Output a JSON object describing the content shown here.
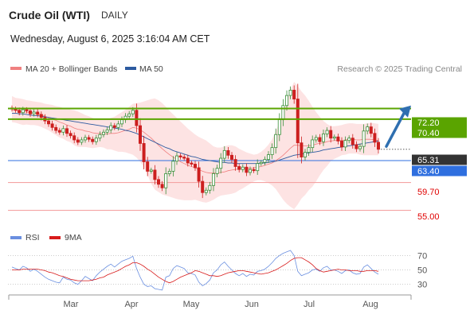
{
  "header": {
    "instrument": "Crude Oil (WTI)",
    "timeframe": "DAILY",
    "datetime": "Wednesday, August 6, 2025 3:16:04 AM CET"
  },
  "legend": {
    "ma20_label": "MA 20 + Bollinger Bands",
    "ma50_label": "MA 50",
    "rsi_label": "RSI",
    "rsi_ma_label": "9MA",
    "credit": "Research © 2025 Trading Central"
  },
  "colors": {
    "up": "#3a8f3a",
    "down": "#cc1f1f",
    "bollinger_fill": "#fde3e3",
    "ma20": "#f08080",
    "ma50": "#2c5aa0",
    "resistance": "#5aa400",
    "support": "#f4a3a3",
    "pivot": "#2f6fdf",
    "current": "#333333",
    "rsi": "#6a8fe0",
    "rsi_ma": "#d81b1b",
    "arrow": "#2f6fb0"
  },
  "chart_data": {
    "type": "candlestick",
    "x_axis": {
      "ticks": [
        "Mar",
        "Apr",
        "May",
        "Jun",
        "Jul",
        "Aug"
      ]
    },
    "y_axis": {
      "range": [
        53.6,
        77.1
      ],
      "side": "right"
    },
    "levels": [
      {
        "label": "72.20",
        "value": 72.2,
        "kind": "resistance"
      },
      {
        "label": "70.40",
        "value": 70.4,
        "kind": "resistance"
      },
      {
        "label": "65.31",
        "value": 65.31,
        "kind": "current"
      },
      {
        "label": "63.40",
        "value": 63.4,
        "kind": "pivot"
      },
      {
        "label": "59.70",
        "value": 59.7,
        "kind": "support"
      },
      {
        "label": "55.00",
        "value": 55.0,
        "kind": "support"
      }
    ],
    "forecast_arrow": {
      "from_value": 65.8,
      "to_value": 72.3
    },
    "candles_close": [
      72.1,
      71.9,
      71.5,
      72.0,
      71.8,
      71.3,
      71.6,
      71.2,
      70.7,
      70.1,
      69.6,
      69.0,
      68.5,
      68.2,
      68.8,
      68.0,
      67.6,
      66.9,
      66.5,
      66.9,
      67.3,
      67.0,
      66.6,
      67.2,
      67.8,
      68.2,
      68.6,
      69.3,
      69.0,
      69.6,
      70.3,
      70.9,
      71.3,
      71.9,
      69.3,
      66.3,
      63.2,
      61.6,
      61.8,
      60.2,
      59.4,
      58.8,
      61.2,
      61.6,
      63.3,
      64.2,
      64.0,
      63.8,
      63.0,
      62.8,
      62.2,
      59.9,
      58.0,
      58.4,
      59.2,
      61.2,
      62.1,
      63.8,
      65.1,
      64.3,
      63.6,
      62.4,
      61.9,
      62.3,
      61.4,
      61.9,
      61.7,
      62.9,
      63.1,
      63.6,
      64.4,
      65.6,
      67.8,
      70.3,
      72.7,
      74.4,
      75.3,
      73.8,
      66.4,
      64.0,
      64.8,
      65.6,
      66.9,
      67.3,
      66.6,
      67.9,
      68.5,
      67.2,
      67.4,
      66.7,
      65.7,
      66.8,
      67.2,
      66.1,
      65.4,
      65.8,
      68.4,
      69.1,
      68.0,
      66.5,
      65.31
    ],
    "ma20_values": [
      72.0,
      71.9,
      71.7,
      71.6,
      71.6,
      71.5,
      71.4,
      71.3,
      71.2,
      70.9,
      70.7,
      70.4,
      70.2,
      69.9,
      69.7,
      69.4,
      69.2,
      68.9,
      68.7,
      68.6,
      68.4,
      68.3,
      68.1,
      68.0,
      68.0,
      67.9,
      67.9,
      68.0,
      68.0,
      68.1,
      68.3,
      68.5,
      68.7,
      69.0,
      68.9,
      68.6,
      68.2,
      67.7,
      67.2,
      66.6,
      66.0,
      65.4,
      64.9,
      64.4,
      64.0,
      63.6,
      63.2,
      62.9,
      62.6,
      62.4,
      62.2,
      61.9,
      61.6,
      61.4,
      61.3,
      61.3,
      61.3,
      61.4,
      61.5,
      61.7,
      61.8,
      61.9,
      62.0,
      62.1,
      62.1,
      62.1,
      62.2,
      62.3,
      62.4,
      62.6,
      62.8,
      63.0,
      63.4,
      63.8,
      64.3,
      64.9,
      65.5,
      66.0,
      66.0,
      65.9,
      65.9,
      65.9,
      66.0,
      66.2,
      66.3,
      66.4,
      66.6,
      66.7,
      66.8,
      66.8,
      66.8,
      66.9,
      67.0,
      67.0,
      66.9,
      66.9,
      67.0,
      67.0,
      67.0,
      66.9,
      66.8
    ],
    "ma50_values": [
      71.4,
      71.4,
      71.3,
      71.3,
      71.2,
      71.1,
      71.0,
      71.0,
      70.9,
      70.8,
      70.7,
      70.6,
      70.5,
      70.4,
      70.3,
      70.2,
      70.1,
      70.0,
      69.9,
      69.8,
      69.7,
      69.6,
      69.5,
      69.4,
      69.3,
      69.2,
      69.1,
      69.0,
      68.9,
      68.8,
      68.7,
      68.5,
      68.4,
      68.2,
      68.0,
      67.7,
      67.4,
      67.1,
      66.8,
      66.5,
      66.2,
      65.9,
      65.6,
      65.4,
      65.1,
      64.9,
      64.7,
      64.5,
      64.3,
      64.1,
      64.0,
      63.8,
      63.6,
      63.5,
      63.4,
      63.3,
      63.2,
      63.1,
      63.1,
      63.0,
      63.0,
      62.9,
      62.9,
      62.9,
      62.9,
      62.9,
      62.9,
      62.9,
      63.0,
      63.0,
      63.1,
      63.2,
      63.3,
      63.5,
      63.7,
      63.9,
      64.1,
      64.3,
      64.4,
      64.5,
      64.6,
      64.7,
      64.8,
      64.9,
      65.0,
      65.2,
      65.3,
      65.4,
      65.5,
      65.6,
      65.7,
      65.8,
      65.9,
      66.0,
      66.1,
      66.2,
      66.3,
      66.4,
      66.5,
      66.6,
      66.7
    ],
    "bollinger_upper": [
      74.3,
      74.0,
      73.9,
      73.8,
      73.6,
      73.5,
      73.4,
      73.3,
      73.2,
      73.0,
      72.9,
      72.8,
      72.6,
      72.5,
      72.3,
      72.2,
      72.0,
      71.9,
      71.7,
      71.4,
      71.1,
      70.9,
      70.6,
      70.4,
      70.3,
      70.3,
      70.4,
      70.6,
      70.8,
      71.2,
      71.6,
      72.0,
      72.5,
      73.0,
      73.1,
      73.2,
      73.4,
      73.6,
      73.8,
      73.9,
      73.6,
      73.1,
      72.5,
      71.8,
      71.2,
      70.6,
      70.0,
      69.4,
      68.8,
      68.3,
      67.8,
      67.4,
      67.1,
      66.8,
      66.3,
      65.8,
      65.6,
      65.6,
      65.8,
      66.0,
      66.0,
      65.8,
      65.4,
      65.1,
      64.8,
      64.6,
      64.4,
      64.5,
      64.9,
      65.4,
      66.1,
      67.0,
      68.3,
      69.9,
      71.6,
      73.5,
      75.4,
      76.7,
      76.0,
      75.1,
      74.4,
      73.5,
      72.5,
      71.6,
      70.8,
      70.1,
      69.6,
      69.2,
      69.2,
      69.3,
      69.4,
      69.6,
      69.7,
      69.7,
      69.6,
      69.6,
      69.6,
      69.7,
      69.8,
      69.7,
      69.6
    ],
    "bollinger_lower": [
      69.9,
      69.8,
      69.6,
      69.4,
      69.5,
      69.4,
      69.4,
      69.3,
      69.1,
      68.8,
      68.5,
      68.1,
      67.7,
      67.3,
      67.1,
      66.7,
      66.5,
      66.0,
      65.7,
      65.7,
      65.7,
      65.6,
      65.5,
      65.6,
      65.7,
      65.6,
      65.3,
      65.3,
      65.1,
      64.9,
      64.9,
      64.8,
      64.6,
      64.4,
      63.9,
      63.2,
      62.3,
      61.0,
      59.5,
      58.5,
      58.1,
      57.7,
      57.5,
      57.3,
      57.1,
      56.9,
      56.8,
      56.7,
      56.7,
      56.7,
      56.8,
      56.6,
      56.4,
      56.3,
      56.5,
      56.8,
      57.2,
      57.5,
      57.6,
      57.7,
      57.8,
      58.0,
      58.4,
      58.7,
      59.1,
      59.5,
      59.9,
      60.1,
      60.1,
      59.9,
      59.6,
      59.2,
      58.6,
      57.7,
      56.8,
      56.1,
      55.6,
      55.2,
      56.0,
      57.0,
      57.6,
      58.4,
      59.0,
      59.9,
      60.9,
      61.8,
      62.5,
      63.3,
      63.7,
      64.0,
      64.3,
      64.4,
      64.6,
      64.6,
      64.6,
      64.4,
      64.3,
      64.3,
      64.3,
      64.3,
      64.3
    ],
    "rsi": {
      "y_range": [
        23,
        77
      ],
      "ticks": [
        70,
        50,
        30
      ],
      "values": [
        54,
        52,
        50,
        55,
        53,
        48,
        51,
        48,
        44,
        40,
        37,
        35,
        33,
        32,
        40,
        37,
        36,
        32,
        30,
        35,
        41,
        38,
        35,
        42,
        47,
        51,
        55,
        58,
        54,
        58,
        62,
        64,
        66,
        69,
        52,
        40,
        30,
        27,
        28,
        24,
        23,
        22,
        40,
        42,
        52,
        56,
        54,
        52,
        46,
        45,
        43,
        33,
        28,
        31,
        36,
        46,
        50,
        57,
        61,
        55,
        50,
        45,
        42,
        45,
        41,
        44,
        43,
        48,
        49,
        51,
        55,
        60,
        66,
        70,
        73,
        75,
        77,
        70,
        48,
        42,
        44,
        46,
        50,
        51,
        48,
        53,
        55,
        50,
        50,
        48,
        45,
        49,
        50,
        46,
        44,
        45,
        54,
        57,
        52,
        47,
        44
      ],
      "ma_values": [
        50,
        50,
        50,
        51,
        51,
        51,
        51,
        51,
        50,
        49,
        47,
        46,
        44,
        42,
        41,
        39,
        37,
        36,
        35,
        35,
        35,
        35,
        36,
        37,
        39,
        40,
        43,
        45,
        47,
        49,
        52,
        55,
        57,
        60,
        60,
        58,
        55,
        51,
        48,
        44,
        40,
        37,
        34,
        32,
        34,
        37,
        40,
        42,
        44,
        46,
        49,
        48,
        46,
        44,
        42,
        42,
        41,
        42,
        44,
        46,
        47,
        48,
        49,
        49,
        48,
        47,
        46,
        45,
        44,
        45,
        46,
        48,
        50,
        53,
        56,
        59,
        63,
        66,
        67,
        67,
        64,
        61,
        57,
        52,
        49,
        47,
        48,
        49,
        50,
        51,
        50,
        50,
        49,
        49,
        49,
        48,
        48,
        49,
        49,
        49,
        48
      ]
    }
  }
}
